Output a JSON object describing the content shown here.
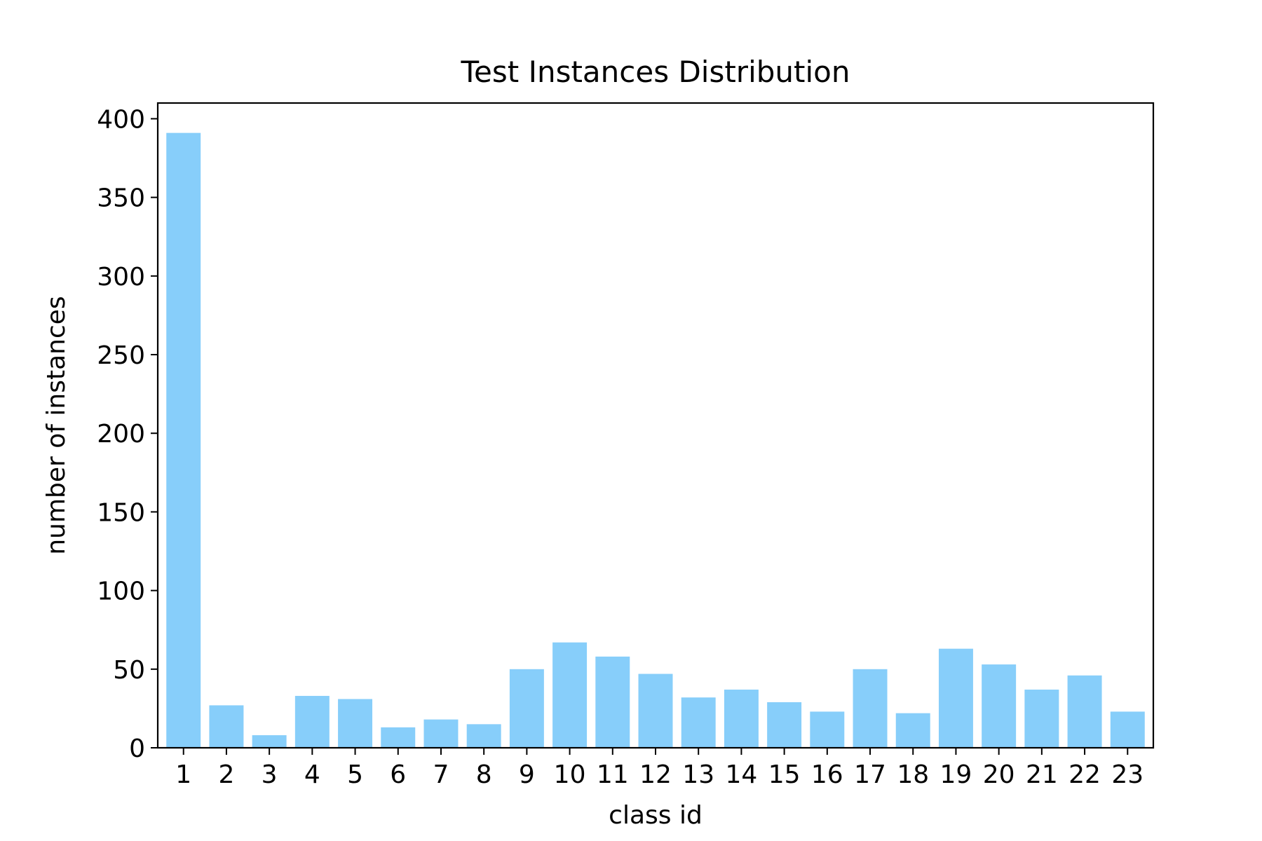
{
  "chart_data": {
    "type": "bar",
    "title": "Test Instances Distribution",
    "xlabel": "class id",
    "ylabel": "number of instances",
    "categories": [
      "1",
      "2",
      "3",
      "4",
      "5",
      "6",
      "7",
      "8",
      "9",
      "10",
      "11",
      "12",
      "13",
      "14",
      "15",
      "16",
      "17",
      "18",
      "19",
      "20",
      "21",
      "22",
      "23"
    ],
    "values": [
      391,
      27,
      8,
      33,
      31,
      13,
      18,
      15,
      50,
      67,
      58,
      47,
      32,
      37,
      29,
      23,
      50,
      22,
      63,
      53,
      37,
      46,
      23
    ],
    "ylim": [
      0,
      410
    ],
    "yticks": [
      0,
      50,
      100,
      150,
      200,
      250,
      300,
      350,
      400
    ],
    "grid": false,
    "bar_color": "#87cefa"
  }
}
